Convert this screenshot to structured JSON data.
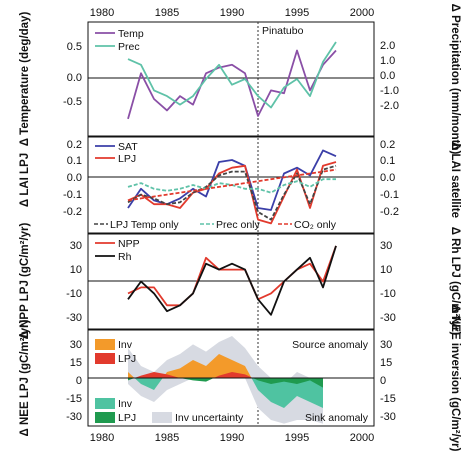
{
  "chart_data": [
    {
      "type": "line",
      "x": [
        1982,
        1983,
        1984,
        1985,
        1986,
        1987,
        1988,
        1989,
        1990,
        1991,
        1992,
        1993,
        1994,
        1995,
        1996,
        1997,
        1998
      ],
      "xlim": [
        1980,
        2000
      ],
      "x_ticks": [
        "1980",
        "1985",
        "1990",
        "1995",
        "2000"
      ],
      "ylabel_left": "Δ Temperature (deg/day)",
      "ylabel_right": "Δ Precipitation (mm/month)",
      "ylim": [
        -1.0,
        1.0
      ],
      "y_ticks_left": [
        "0.5",
        "0.0",
        "-0.5"
      ],
      "y_ticks_right": [
        "2.0",
        "1.0",
        "0.0",
        "-1.0",
        "-2.0"
      ],
      "annotation": "Pinatubo",
      "series": [
        {
          "name": "Temp",
          "color": "#8a4fa6",
          "values": [
            -0.7,
            0.1,
            -0.35,
            -0.55,
            -0.3,
            -0.45,
            0.1,
            0.2,
            0.25,
            0.1,
            -0.65,
            -0.2,
            -0.25,
            0.5,
            -0.2,
            0.25,
            0.5
          ]
        },
        {
          "name": "Prec",
          "color": "#5fc2a8",
          "values": [
            0.35,
            0.25,
            -0.2,
            -0.3,
            -0.45,
            -0.3,
            0.0,
            0.25,
            -0.1,
            0.0,
            -0.3,
            -0.5,
            -0.15,
            0.0,
            -0.3,
            0.3,
            0.65
          ]
        }
      ]
    },
    {
      "type": "line",
      "x": [
        1982,
        1983,
        1984,
        1985,
        1986,
        1987,
        1988,
        1989,
        1990,
        1991,
        1992,
        1993,
        1994,
        1995,
        1996,
        1997,
        1998
      ],
      "xlim": [
        1980,
        2000
      ],
      "ylabel_left": "Δ LAI LPJ",
      "ylabel_right": "Δ LAI satellite",
      "ylim": [
        -0.25,
        0.25
      ],
      "y_ticks": [
        "0.2",
        "0.1",
        "0.0",
        "-0.1",
        "-0.2"
      ],
      "series": [
        {
          "name": "SAT",
          "color": "#3b3fa8",
          "style": "solid",
          "values": [
            -0.12,
            -0.02,
            -0.08,
            -0.1,
            -0.07,
            -0.02,
            -0.06,
            0.12,
            0.13,
            0.1,
            -0.12,
            -0.13,
            0.06,
            0.09,
            0.05,
            0.18,
            0.15
          ]
        },
        {
          "name": "LPJ",
          "color": "#e23a2d",
          "style": "solid",
          "values": [
            -0.08,
            -0.05,
            -0.1,
            -0.1,
            -0.12,
            -0.04,
            -0.02,
            0.06,
            0.09,
            0.1,
            -0.18,
            -0.2,
            -0.06,
            0.08,
            -0.12,
            0.1,
            0.12
          ]
        },
        {
          "name": "LPJ Temp only",
          "color": "#444444",
          "style": "dashed",
          "values": [
            -0.09,
            -0.05,
            -0.07,
            -0.1,
            -0.09,
            -0.04,
            -0.01,
            0.05,
            0.07,
            0.07,
            -0.14,
            -0.18,
            -0.05,
            0.06,
            -0.1,
            0.08,
            0.1
          ]
        },
        {
          "name": "Prec only",
          "color": "#5fc2a8",
          "style": "dashed",
          "values": [
            -0.01,
            0.01,
            -0.02,
            -0.03,
            -0.02,
            0.0,
            -0.02,
            0.01,
            0.0,
            -0.02,
            -0.02,
            -0.04,
            0.0,
            0.02,
            -0.01,
            0.03,
            0.03
          ]
        },
        {
          "name": "CO₂ only",
          "color": "#e23a2d",
          "style": "dashed",
          "values": [
            -0.08,
            -0.07,
            -0.06,
            -0.05,
            -0.04,
            -0.03,
            -0.02,
            -0.01,
            0.0,
            0.01,
            0.02,
            0.03,
            0.04,
            0.05,
            0.06,
            0.07,
            0.08
          ]
        }
      ]
    },
    {
      "type": "line",
      "x": [
        1982,
        1983,
        1984,
        1985,
        1986,
        1987,
        1988,
        1989,
        1990,
        1991,
        1992,
        1993,
        1994,
        1995,
        1996,
        1997,
        1998
      ],
      "xlim": [
        1980,
        2000
      ],
      "ylabel_left": "Δ NPP LPJ (gC/m²/yr)",
      "ylabel_right": "Δ Rh LPJ (gC/m²/yr)",
      "ylim": [
        -40,
        40
      ],
      "y_ticks": [
        "30",
        "10",
        "-10",
        "-30"
      ],
      "series": [
        {
          "name": "NPP",
          "color": "#e23a2d",
          "values": [
            -10,
            -5,
            -5,
            -20,
            -20,
            -10,
            20,
            10,
            10,
            10,
            -15,
            -10,
            0,
            10,
            15,
            0,
            30
          ]
        },
        {
          "name": "Rh",
          "color": "#111111",
          "values": [
            -15,
            0,
            -10,
            -25,
            -20,
            -10,
            15,
            10,
            15,
            10,
            -15,
            -28,
            0,
            10,
            20,
            -5,
            30
          ]
        }
      ]
    },
    {
      "type": "area",
      "x": [
        1982,
        1983,
        1984,
        1985,
        1986,
        1987,
        1988,
        1989,
        1990,
        1991,
        1992,
        1993,
        1994,
        1995,
        1996,
        1997,
        1998
      ],
      "xlim": [
        1980,
        2000
      ],
      "x_ticks": [
        "1980",
        "1985",
        "1990",
        "1995",
        "2000"
      ],
      "ylabel_left": "Δ NEE LPJ (gC/m²/yr)",
      "ylabel_right": "Δ NEE inversion (gC/m²/yr)",
      "ylim": [
        -40,
        40
      ],
      "y_ticks": [
        "30",
        "15",
        "0",
        "-15",
        "-30"
      ],
      "annotations": [
        "Source anomaly",
        "Sink anomaly"
      ],
      "legend_top": [
        {
          "name": "Inv",
          "color": "#f39a2a"
        },
        {
          "name": "LPJ",
          "color": "#e23a2d"
        }
      ],
      "legend_bottom": [
        {
          "name": "Inv",
          "color": "#4fc3a1"
        },
        {
          "name": "LPJ",
          "color": "#1f9a4f"
        },
        {
          "name": "Inv uncertainty",
          "color": "#d7dae2"
        }
      ],
      "series": [
        {
          "name": "Inv",
          "values": [
            5,
            -5,
            -10,
            5,
            8,
            15,
            10,
            20,
            15,
            10,
            -10,
            -20,
            -25,
            -15,
            -20,
            -25,
            null
          ]
        },
        {
          "name": "LPJ",
          "values": [
            -2,
            2,
            5,
            3,
            0,
            -2,
            -3,
            2,
            5,
            3,
            -2,
            -5,
            -3,
            -5,
            -2,
            -8,
            null
          ]
        },
        {
          "name": "Inv uncertainty",
          "values": [
            [
              -5,
              25
            ],
            [
              -15,
              10
            ],
            [
              -20,
              5
            ],
            [
              -10,
              15
            ],
            [
              -5,
              20
            ],
            [
              0,
              28
            ],
            [
              0,
              22
            ],
            [
              5,
              30
            ],
            [
              5,
              35
            ],
            [
              0,
              25
            ],
            [
              -25,
              10
            ],
            [
              -35,
              0
            ],
            [
              -38,
              -5
            ],
            [
              -35,
              5
            ],
            [
              -35,
              0
            ],
            [
              -38,
              -5
            ],
            null
          ]
        }
      ]
    }
  ]
}
